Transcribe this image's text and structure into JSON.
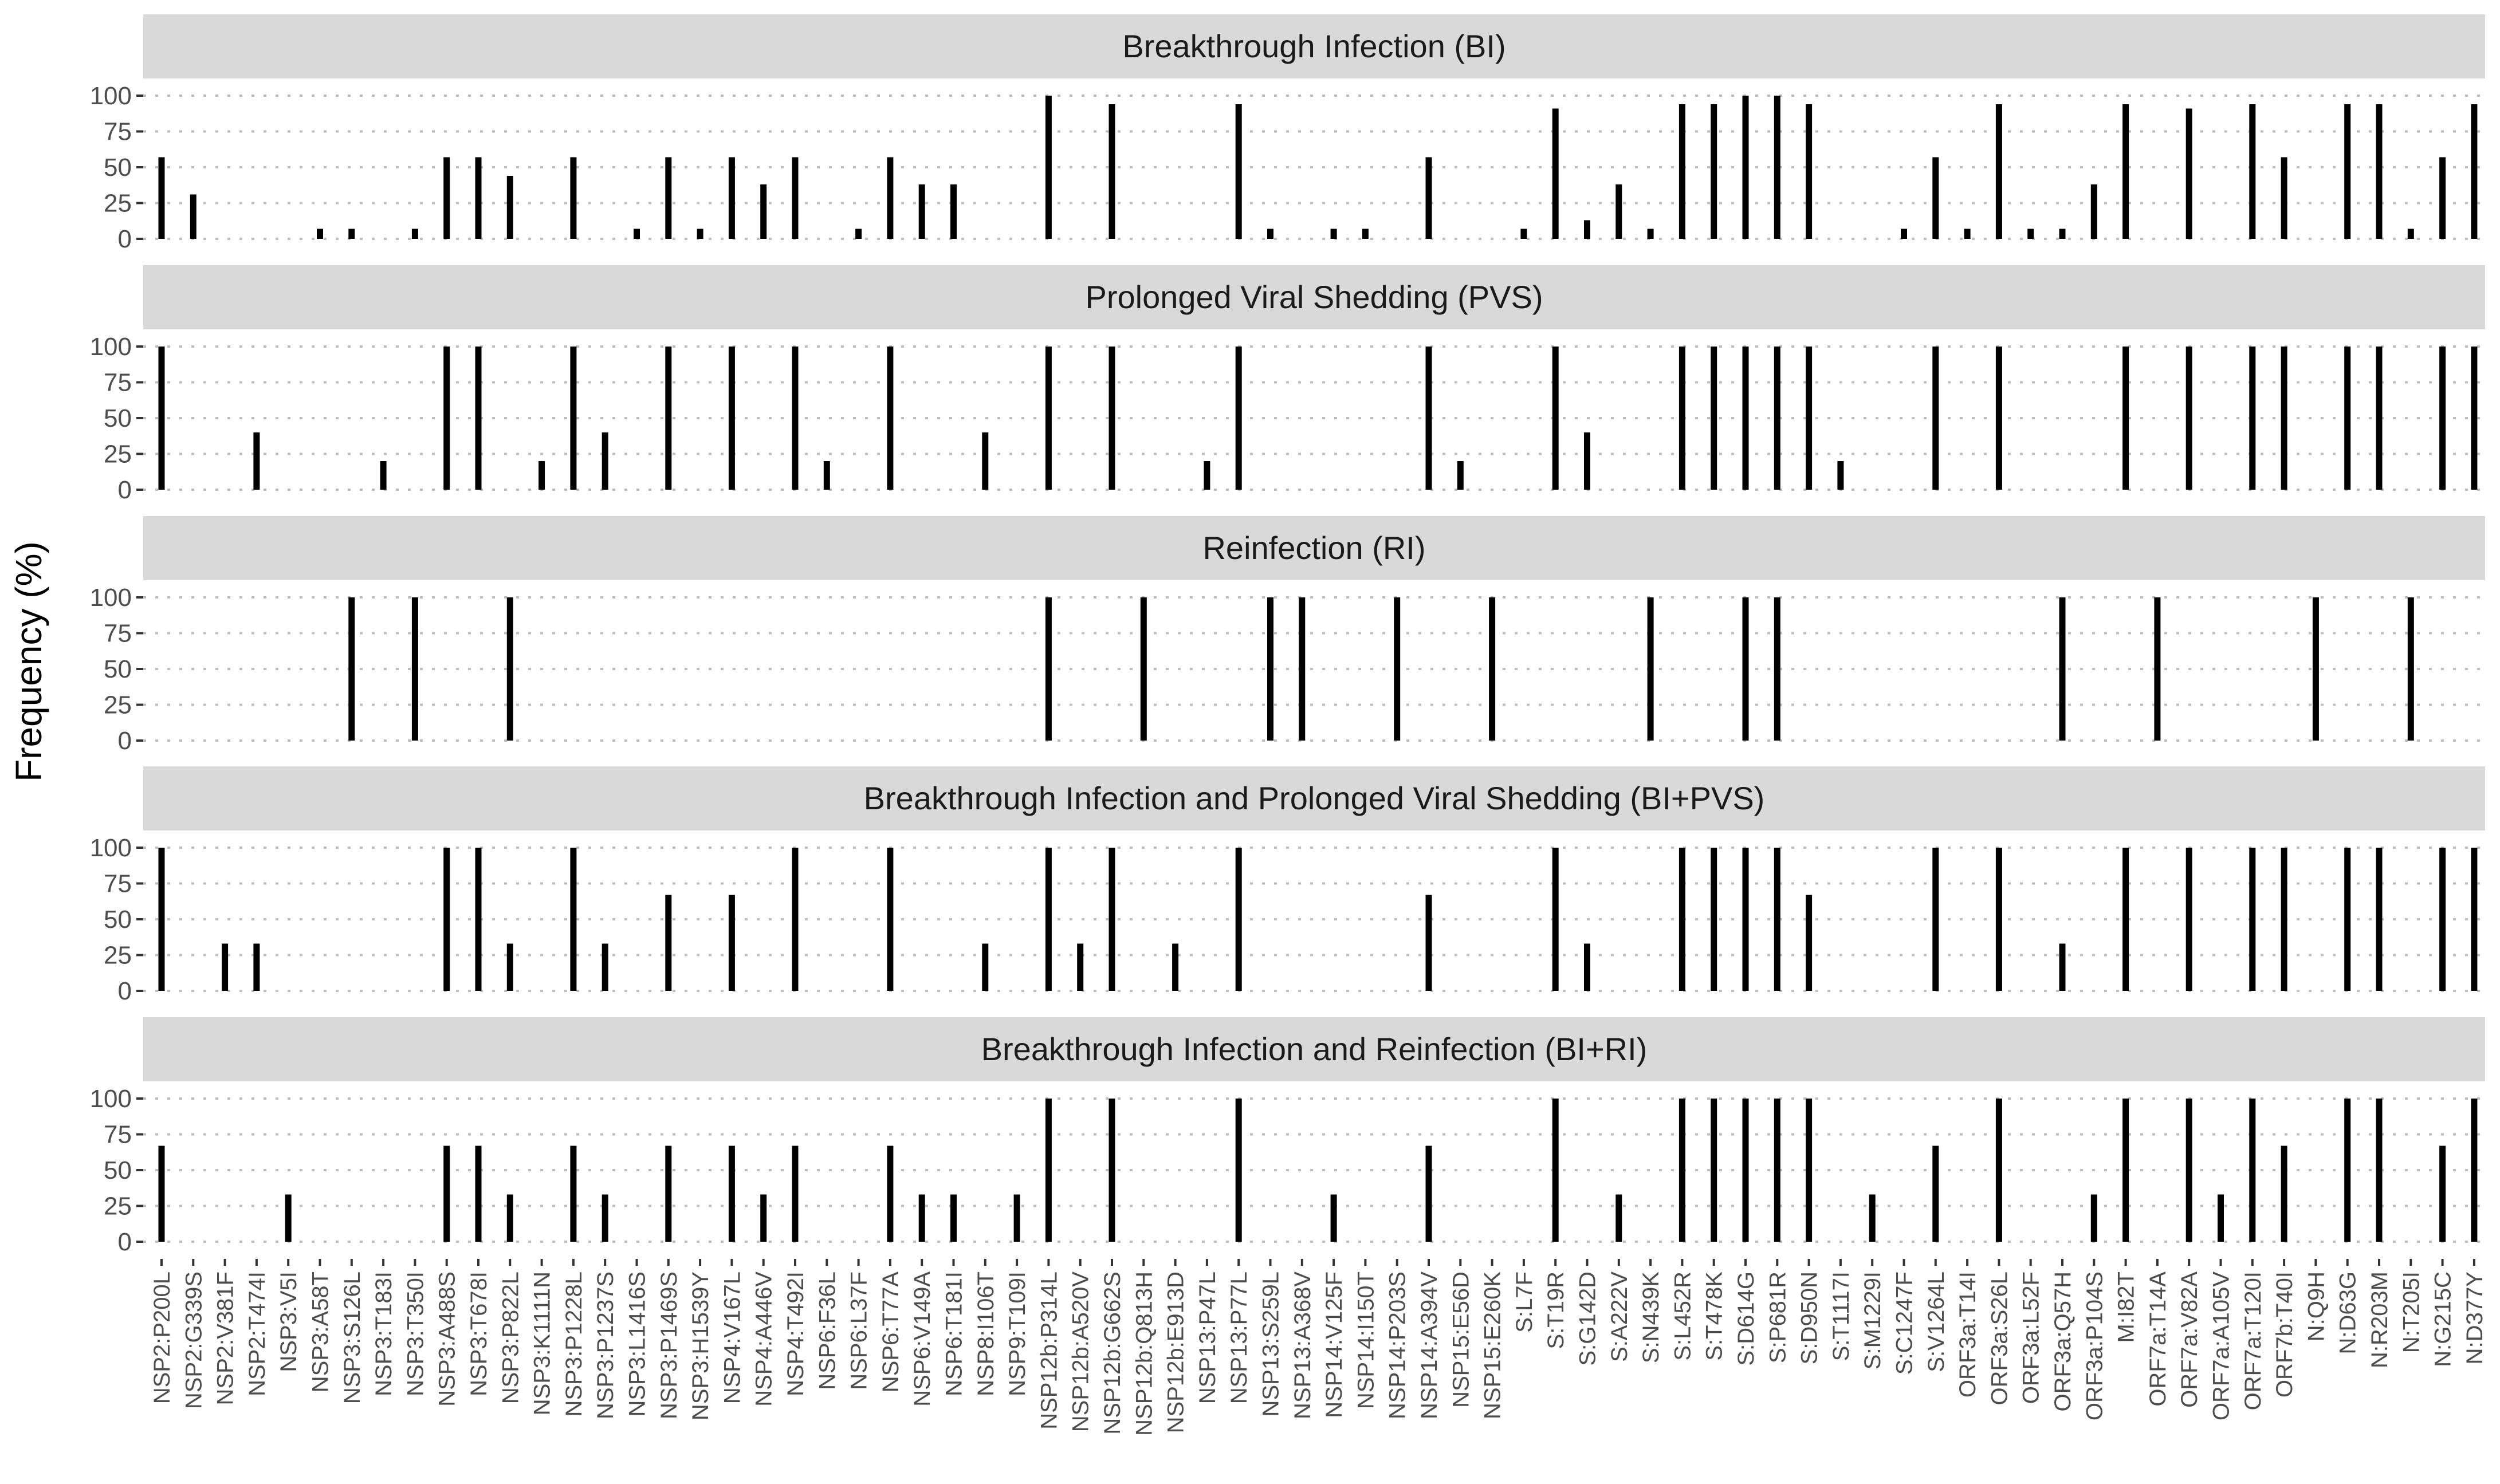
{
  "chart_data": {
    "type": "bar",
    "ylabel": "Frequency (%)",
    "xlabel": "",
    "ylim": [
      0,
      100
    ],
    "yticks": [
      0,
      25,
      50,
      75,
      100
    ],
    "grid": true,
    "categories": [
      "NSP2:P200L",
      "NSP2:G339S",
      "NSP2:V381F",
      "NSP2:T474I",
      "NSP3:V5I",
      "NSP3:A58T",
      "NSP3:S126L",
      "NSP3:T183I",
      "NSP3:T350I",
      "NSP3:A488S",
      "NSP3:T678I",
      "NSP3:P822L",
      "NSP3:K1111N",
      "NSP3:P1228L",
      "NSP3:P1237S",
      "NSP3:L1416S",
      "NSP3:P1469S",
      "NSP3:H1539Y",
      "NSP4:V167L",
      "NSP4:A446V",
      "NSP4:T492I",
      "NSP6:F36L",
      "NSP6:L37F",
      "NSP6:T77A",
      "NSP6:V149A",
      "NSP6:T181I",
      "NSP8:I106T",
      "NSP9:T109I",
      "NSP12b:P314L",
      "NSP12b:A520V",
      "NSP12b:G662S",
      "NSP12b:Q813H",
      "NSP12b:E913D",
      "NSP13:P47L",
      "NSP13:P77L",
      "NSP13:S259L",
      "NSP13:A368V",
      "NSP14:V125F",
      "NSP14:I150T",
      "NSP14:P203S",
      "NSP14:A394V",
      "NSP15:E56D",
      "NSP15:E260K",
      "S:L7F",
      "S:T19R",
      "S:G142D",
      "S:A222V",
      "S:N439K",
      "S:L452R",
      "S:T478K",
      "S:D614G",
      "S:P681R",
      "S:D950N",
      "S:T1117I",
      "S:M1229I",
      "S:C1247F",
      "S:V1264L",
      "ORF3a:T14I",
      "ORF3a:S26L",
      "ORF3a:L52F",
      "ORF3a:Q57H",
      "ORF3a:P104S",
      "M:I82T",
      "ORF7a:T14A",
      "ORF7a:V82A",
      "ORF7a:A105V",
      "ORF7a:T120I",
      "ORF7b:T40I",
      "N:Q9H",
      "N:D63G",
      "N:R203M",
      "N:T205I",
      "N:G215C",
      "N:D377Y"
    ],
    "series": [
      {
        "name": "Breakthrough Infection (BI)",
        "values": [
          57,
          31,
          0,
          0,
          0,
          7,
          7,
          0,
          7,
          57,
          57,
          44,
          0,
          57,
          0,
          7,
          57,
          7,
          57,
          38,
          57,
          0,
          7,
          57,
          38,
          38,
          0,
          0,
          100,
          0,
          94,
          0,
          0,
          0,
          94,
          7,
          0,
          7,
          7,
          0,
          57,
          0,
          0,
          7,
          91,
          13,
          38,
          7,
          94,
          94,
          100,
          100,
          94,
          0,
          0,
          7,
          57,
          7,
          94,
          7,
          7,
          38,
          94,
          0,
          91,
          0,
          94,
          57,
          0,
          94,
          94,
          7,
          57,
          94
        ]
      },
      {
        "name": "Prolonged Viral Shedding (PVS)",
        "values": [
          100,
          0,
          0,
          40,
          0,
          0,
          0,
          20,
          0,
          100,
          100,
          0,
          20,
          100,
          40,
          0,
          100,
          0,
          100,
          0,
          100,
          20,
          0,
          100,
          0,
          0,
          40,
          0,
          100,
          0,
          100,
          0,
          0,
          20,
          100,
          0,
          0,
          0,
          0,
          0,
          100,
          20,
          0,
          0,
          100,
          40,
          0,
          0,
          100,
          100,
          100,
          100,
          100,
          20,
          0,
          0,
          100,
          0,
          100,
          0,
          0,
          0,
          100,
          0,
          100,
          0,
          100,
          100,
          0,
          100,
          100,
          0,
          100,
          100
        ]
      },
      {
        "name": "Reinfection (RI)",
        "values": [
          0,
          0,
          0,
          0,
          0,
          0,
          100,
          0,
          100,
          0,
          0,
          100,
          0,
          0,
          0,
          0,
          0,
          0,
          0,
          0,
          0,
          0,
          0,
          0,
          0,
          0,
          0,
          0,
          100,
          0,
          0,
          100,
          0,
          0,
          0,
          100,
          100,
          0,
          0,
          100,
          0,
          0,
          100,
          0,
          0,
          0,
          0,
          100,
          0,
          0,
          100,
          100,
          0,
          0,
          0,
          0,
          0,
          0,
          0,
          0,
          100,
          0,
          0,
          100,
          0,
          0,
          0,
          0,
          100,
          0,
          0,
          100,
          0,
          0
        ]
      },
      {
        "name": "Breakthrough Infection and Prolonged Viral Shedding (BI+PVS)",
        "values": [
          100,
          0,
          33,
          33,
          0,
          0,
          0,
          0,
          0,
          100,
          100,
          33,
          0,
          100,
          33,
          0,
          67,
          0,
          67,
          0,
          100,
          0,
          0,
          100,
          0,
          0,
          33,
          0,
          100,
          33,
          100,
          0,
          33,
          0,
          100,
          0,
          0,
          0,
          0,
          0,
          67,
          0,
          0,
          0,
          100,
          33,
          0,
          0,
          100,
          100,
          100,
          100,
          67,
          0,
          0,
          0,
          100,
          0,
          100,
          0,
          33,
          0,
          100,
          0,
          100,
          0,
          100,
          100,
          0,
          100,
          100,
          0,
          100,
          100
        ]
      },
      {
        "name": "Breakthrough Infection and Reinfection (BI+RI)",
        "values": [
          67,
          0,
          0,
          0,
          33,
          0,
          0,
          0,
          0,
          67,
          67,
          33,
          0,
          67,
          33,
          0,
          67,
          0,
          67,
          33,
          67,
          0,
          0,
          67,
          33,
          33,
          0,
          33,
          100,
          0,
          100,
          0,
          0,
          0,
          100,
          0,
          0,
          33,
          0,
          0,
          67,
          0,
          0,
          0,
          100,
          0,
          33,
          0,
          100,
          100,
          100,
          100,
          100,
          0,
          33,
          0,
          67,
          0,
          100,
          0,
          0,
          33,
          100,
          0,
          100,
          33,
          100,
          67,
          0,
          100,
          100,
          0,
          67,
          100
        ]
      }
    ]
  }
}
